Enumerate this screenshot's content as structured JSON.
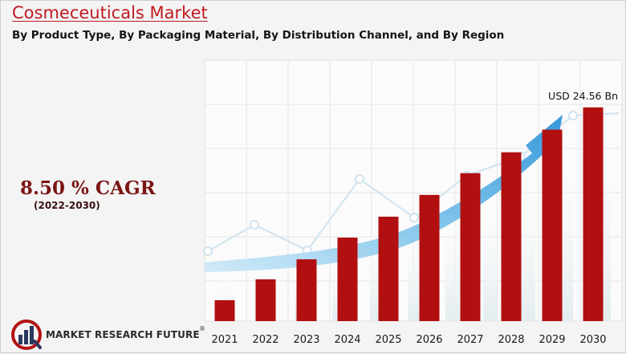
{
  "title": "Cosmeceuticals Market",
  "subtitle": "By Product Type, By Packaging Material, By Distribution Channel, and By Region",
  "cagr": {
    "value": "8.50 % CAGR",
    "period": "(2022-2030)"
  },
  "logo": {
    "text": "MARKET RESEARCH FUTURE",
    "reg": "®"
  },
  "colors": {
    "bar": "#b10f10",
    "title": "#c0191f",
    "arrow": "#5ab0e2",
    "background": "#f4f4f4"
  },
  "chart_data": {
    "type": "bar",
    "title": "",
    "xlabel": "",
    "ylabel": "",
    "categories": [
      "2021",
      "2022",
      "2023",
      "2024",
      "2025",
      "2026",
      "2027",
      "2028",
      "2029",
      "2030"
    ],
    "values": [
      2.4,
      4.8,
      7.1,
      9.6,
      12.0,
      14.5,
      17.0,
      19.4,
      22.0,
      24.56
    ],
    "ylim": [
      0,
      25
    ],
    "grid": true,
    "annotations": [
      {
        "category": "2030",
        "text": "USD 24.56 Bn"
      }
    ],
    "legend": "none"
  }
}
